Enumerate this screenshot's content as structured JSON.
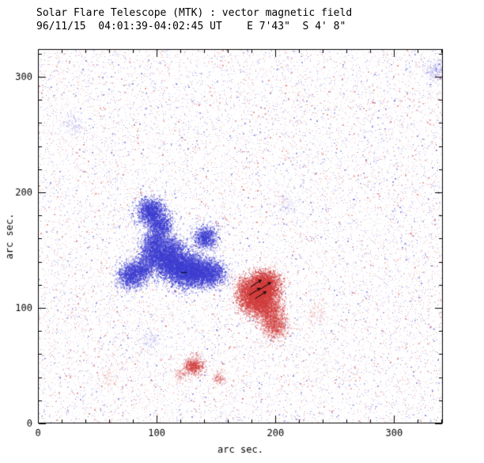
{
  "chart_data": {
    "type": "heatmap",
    "title": "Solar Flare Telescope (MTK) : vector magnetic field",
    "subtitle": "96/11/15  04:01:39-04:02:45 UT    E 7'43\"  S 4' 8\"",
    "xlabel": "arc sec.",
    "ylabel": "arc sec.",
    "xlim": [
      0,
      341
    ],
    "ylim": [
      0,
      324
    ],
    "xticks": [
      0,
      100,
      200,
      300
    ],
    "yticks": [
      0,
      100,
      200,
      300
    ],
    "minor_tick_interval": 20,
    "grid": false,
    "legend": "none",
    "polarity_colors": {
      "negative": "#3b3bd0",
      "positive": "#d03b3b"
    },
    "frame_color": "#000000",
    "noise": {
      "seed": 1337,
      "count": 30000
    },
    "regions": {
      "negative": [
        {
          "x": 95,
          "y": 183,
          "sigma": 6,
          "n": 1800,
          "alpha": 0.5
        },
        {
          "x": 103,
          "y": 171,
          "sigma": 5,
          "n": 1200,
          "alpha": 0.45
        },
        {
          "x": 99,
          "y": 158,
          "sigma": 5,
          "n": 1100,
          "alpha": 0.4
        },
        {
          "x": 97,
          "y": 147,
          "sigma": 6,
          "n": 1500,
          "alpha": 0.45
        },
        {
          "x": 110,
          "y": 141,
          "sigma": 7,
          "n": 2200,
          "alpha": 0.5
        },
        {
          "x": 122,
          "y": 134,
          "sigma": 8,
          "n": 3200,
          "alpha": 0.55
        },
        {
          "x": 134,
          "y": 131,
          "sigma": 6,
          "n": 1800,
          "alpha": 0.5
        },
        {
          "x": 146,
          "y": 130,
          "sigma": 6,
          "n": 1600,
          "alpha": 0.45
        },
        {
          "x": 141,
          "y": 161,
          "sigma": 5,
          "n": 1200,
          "alpha": 0.45
        },
        {
          "x": 78,
          "y": 128,
          "sigma": 6,
          "n": 1500,
          "alpha": 0.45
        },
        {
          "x": 88,
          "y": 134,
          "sigma": 5,
          "n": 1000,
          "alpha": 0.4
        },
        {
          "x": 113,
          "y": 153,
          "sigma": 5,
          "n": 900,
          "alpha": 0.35
        }
      ],
      "positive": [
        {
          "x": 186,
          "y": 115,
          "sigma": 7,
          "n": 3000,
          "alpha": 0.55
        },
        {
          "x": 192,
          "y": 121,
          "sigma": 6,
          "n": 1700,
          "alpha": 0.5
        },
        {
          "x": 180,
          "y": 107,
          "sigma": 6,
          "n": 1500,
          "alpha": 0.45
        },
        {
          "x": 192,
          "y": 102,
          "sigma": 6,
          "n": 1500,
          "alpha": 0.45
        },
        {
          "x": 197,
          "y": 91,
          "sigma": 6,
          "n": 1100,
          "alpha": 0.35
        },
        {
          "x": 200,
          "y": 82,
          "sigma": 5,
          "n": 700,
          "alpha": 0.3
        },
        {
          "x": 173,
          "y": 118,
          "sigma": 4,
          "n": 450,
          "alpha": 0.3
        },
        {
          "x": 131,
          "y": 50,
          "sigma": 4,
          "n": 700,
          "alpha": 0.4
        },
        {
          "x": 152,
          "y": 40,
          "sigma": 3,
          "n": 220,
          "alpha": 0.25
        },
        {
          "x": 120,
          "y": 42,
          "sigma": 3,
          "n": 160,
          "alpha": 0.2
        }
      ]
    },
    "faint_patches": [
      {
        "polarity": "negative",
        "x": 335,
        "y": 305,
        "sigma": 5,
        "n": 280,
        "alpha": 0.18
      },
      {
        "polarity": "negative",
        "x": 30,
        "y": 258,
        "sigma": 5,
        "n": 180,
        "alpha": 0.14
      },
      {
        "polarity": "negative",
        "x": 210,
        "y": 188,
        "sigma": 6,
        "n": 180,
        "alpha": 0.12
      },
      {
        "polarity": "negative",
        "x": 95,
        "y": 72,
        "sigma": 4,
        "n": 140,
        "alpha": 0.13
      },
      {
        "polarity": "positive",
        "x": 236,
        "y": 96,
        "sigma": 5,
        "n": 170,
        "alpha": 0.13
      },
      {
        "polarity": "positive",
        "x": 60,
        "y": 40,
        "sigma": 5,
        "n": 140,
        "alpha": 0.12
      }
    ],
    "vectors": [
      {
        "x1": 178,
        "y1": 111,
        "x2": 187,
        "y2": 117
      },
      {
        "x1": 183,
        "y1": 108,
        "x2": 192,
        "y2": 114
      },
      {
        "x1": 179,
        "y1": 118,
        "x2": 188,
        "y2": 124
      },
      {
        "x1": 187,
        "y1": 116,
        "x2": 196,
        "y2": 122
      }
    ],
    "marks": [
      {
        "type": "dash",
        "x": 123,
        "y": 131,
        "len": 5
      }
    ]
  }
}
